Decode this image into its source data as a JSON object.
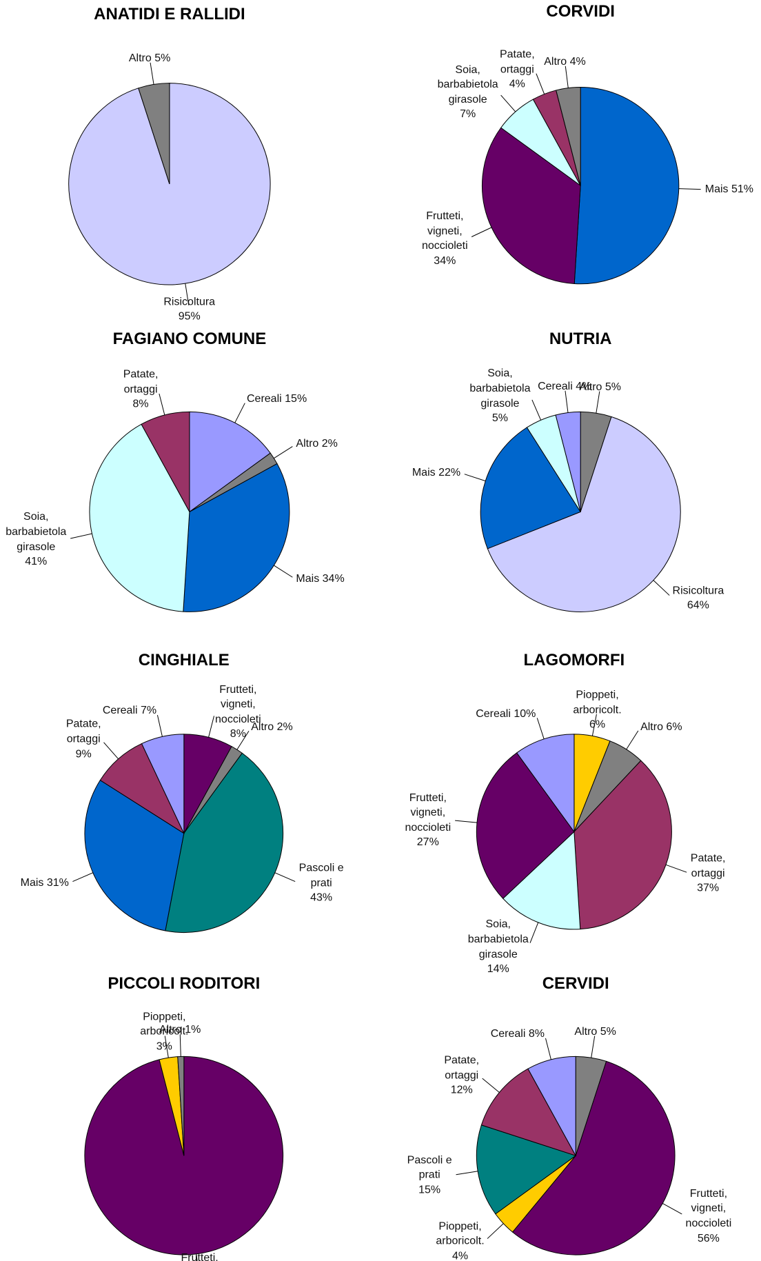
{
  "chart_data": [
    {
      "type": "pie",
      "title": "ANATIDI E RALLIDI",
      "categories": [
        "Risicoltura",
        "Altro"
      ],
      "values": [
        95,
        5
      ],
      "value_labels": [
        "95%",
        "5%"
      ],
      "colors": [
        "#ccccff",
        "#808080"
      ]
    },
    {
      "type": "pie",
      "title": "CORVIDI",
      "categories": [
        "Mais",
        "Frutteti,\nvigneti,\nnoccioleti",
        "Soia,\nbarbabietola\ngirasole",
        "Patate,\nortaggi",
        "Altro"
      ],
      "values": [
        51,
        34,
        7,
        4,
        4
      ],
      "value_labels": [
        "51%",
        "34%",
        "7%",
        "4%",
        "4%"
      ],
      "colors": [
        "#0066cc",
        "#660066",
        "#ccffff",
        "#993366",
        "#808080"
      ]
    },
    {
      "type": "pie",
      "title": "FAGIANO COMUNE",
      "categories": [
        "Cereali",
        "Altro",
        "Mais",
        "Soia,\nbarbabietola\ngirasole",
        "Patate,\nortaggi"
      ],
      "values": [
        15,
        2,
        34,
        41,
        8
      ],
      "value_labels": [
        "15%",
        "2%",
        "34%",
        "41%",
        "8%"
      ],
      "colors": [
        "#9999ff",
        "#808080",
        "#0066cc",
        "#ccffff",
        "#993366"
      ]
    },
    {
      "type": "pie",
      "title": "NUTRIA",
      "categories": [
        "Altro",
        "Risicoltura",
        "Mais",
        "Soia,\nbarbabietola\ngirasole",
        "Cereali"
      ],
      "values": [
        5,
        64,
        22,
        5,
        4
      ],
      "value_labels": [
        "5%",
        "64%",
        "22%",
        "5%",
        "4%"
      ],
      "colors": [
        "#808080",
        "#ccccff",
        "#0066cc",
        "#ccffff",
        "#9999ff"
      ]
    },
    {
      "type": "pie",
      "title": "CINGHIALE",
      "categories": [
        "Frutteti,\nvigneti,\nnoccioleti",
        "Altro",
        "Pascoli e\nprati",
        "Mais",
        "Patate,\nortaggi",
        "Cereali"
      ],
      "values": [
        8,
        2,
        43,
        31,
        9,
        7
      ],
      "value_labels": [
        "8%",
        "2%",
        "43%",
        "31%",
        "9%",
        "7%"
      ],
      "colors": [
        "#660066",
        "#808080",
        "#008080",
        "#0066cc",
        "#993366",
        "#9999ff"
      ]
    },
    {
      "type": "pie",
      "title": "LAGOMORFI",
      "categories": [
        "Pioppeti,\narboricolt.",
        "Altro",
        "Patate,\nortaggi",
        "Soia,\nbarbabietola\ngirasole",
        "Frutteti,\nvigneti,\nnoccioleti",
        "Cereali"
      ],
      "values": [
        6,
        6,
        37,
        14,
        27,
        10
      ],
      "value_labels": [
        "6%",
        "6%",
        "37%",
        "14%",
        "27%",
        "10%"
      ],
      "colors": [
        "#ffcc00",
        "#808080",
        "#993366",
        "#ccffff",
        "#660066",
        "#9999ff"
      ]
    },
    {
      "type": "pie",
      "title": "PICCOLI RODITORI",
      "categories": [
        "Frutteti,\nvigneti,\nnoccioleti",
        "Pioppeti,\narboricolt.",
        "Altro"
      ],
      "values": [
        96,
        3,
        1
      ],
      "value_labels": [
        "96%",
        "3%",
        "1%"
      ],
      "colors": [
        "#660066",
        "#ffcc00",
        "#808080"
      ]
    },
    {
      "type": "pie",
      "title": "CERVIDI",
      "categories": [
        "Altro",
        "Frutteti,\nvigneti,\nnoccioleti",
        "Pioppeti,\narboricolt.",
        "Pascoli e\nprati",
        "Patate,\nortaggi",
        "Cereali"
      ],
      "values": [
        5,
        56,
        4,
        15,
        12,
        8
      ],
      "value_labels": [
        "5%",
        "56%",
        "4%",
        "15%",
        "12%",
        "8%"
      ],
      "colors": [
        "#808080",
        "#660066",
        "#ffcc00",
        "#008080",
        "#993366",
        "#9999ff"
      ]
    }
  ]
}
